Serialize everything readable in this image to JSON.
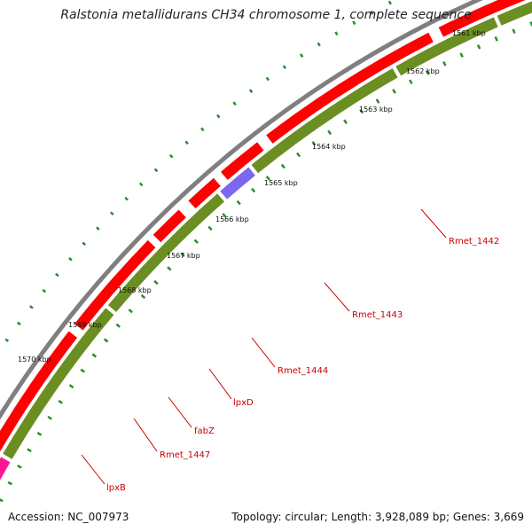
{
  "title": "Ralstonia metallidurans CH34 chromosome 1, complete sequence",
  "footer": {
    "accession": "Accession: NC_007973",
    "topology": "Topology: circular; Length: 3,928,089 bp; Genes: 3,669"
  },
  "colors": {
    "backbone": "#7f7f7f",
    "forward_cds": "#ff0000",
    "reverse_cds": "#6b8e23",
    "reverse_blue": "#7b68ee",
    "reverse_pink": "#ff1493",
    "reverse_salmon": "#f4a582",
    "tick": "#2e8b2e",
    "gene_label": "#cc0000"
  },
  "scale_ticks": [
    "1561 kbp",
    "1562 kbp",
    "1563 kbp",
    "1564 kbp",
    "1565 kbp",
    "1566 kbp",
    "1567 kbp",
    "1568 kbp",
    "1569 kbp",
    "1570 kbp"
  ],
  "gene_labels": [
    "Rmet_1442",
    "Rmet_1443",
    "Rmet_1444",
    "lpxD",
    "fabZ",
    "Rmet_1447",
    "lpxB"
  ]
}
